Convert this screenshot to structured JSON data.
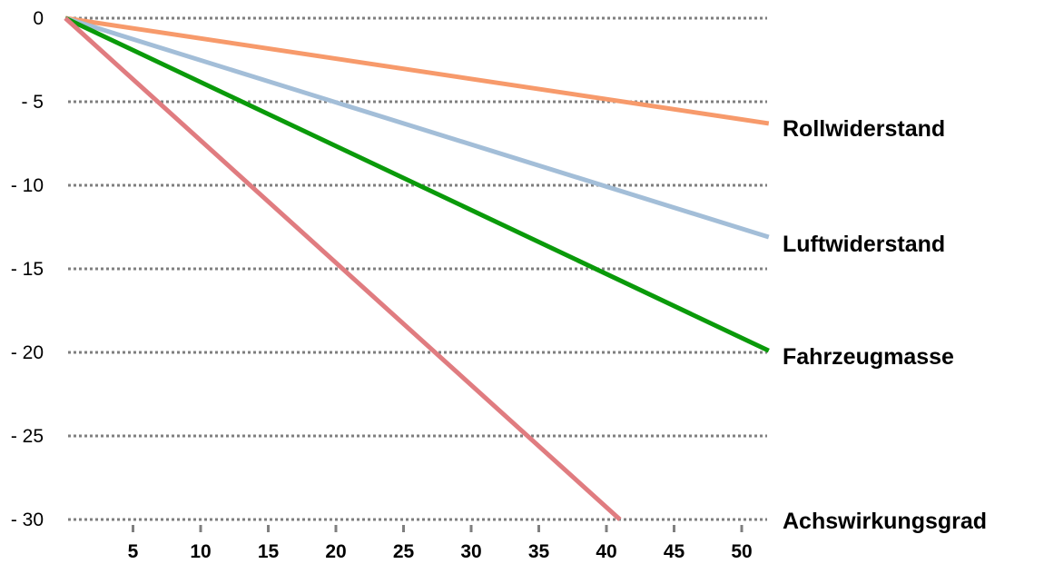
{
  "chart_data": {
    "type": "line",
    "x_ticks": [
      5,
      10,
      15,
      20,
      25,
      30,
      35,
      40,
      45,
      50
    ],
    "y_ticks": [
      {
        "value": 0,
        "label": "0"
      },
      {
        "value": -5,
        "label": "- 5"
      },
      {
        "value": -10,
        "label": "- 10"
      },
      {
        "value": -15,
        "label": "- 15"
      },
      {
        "value": -20,
        "label": "- 20"
      },
      {
        "value": -25,
        "label": "- 25"
      },
      {
        "value": -30,
        "label": "- 30"
      }
    ],
    "xlim": [
      0,
      52
    ],
    "ylim": [
      -30,
      0
    ],
    "grid": true,
    "series": [
      {
        "name": "Rollwiderstand",
        "color": "#f79a6b",
        "x": [
          0,
          52
        ],
        "y": [
          0,
          -6.3
        ]
      },
      {
        "name": "Luftwiderstand",
        "color": "#a3bed8",
        "x": [
          0,
          52
        ],
        "y": [
          0,
          -13.1
        ]
      },
      {
        "name": "Fahrzeugmasse",
        "color": "#0a9a0a",
        "x": [
          0,
          52
        ],
        "y": [
          0,
          -19.9
        ]
      },
      {
        "name": "Achswirkungsgrad",
        "color": "#e07c80",
        "x": [
          0,
          41
        ],
        "y": [
          0,
          -30
        ]
      }
    ]
  }
}
